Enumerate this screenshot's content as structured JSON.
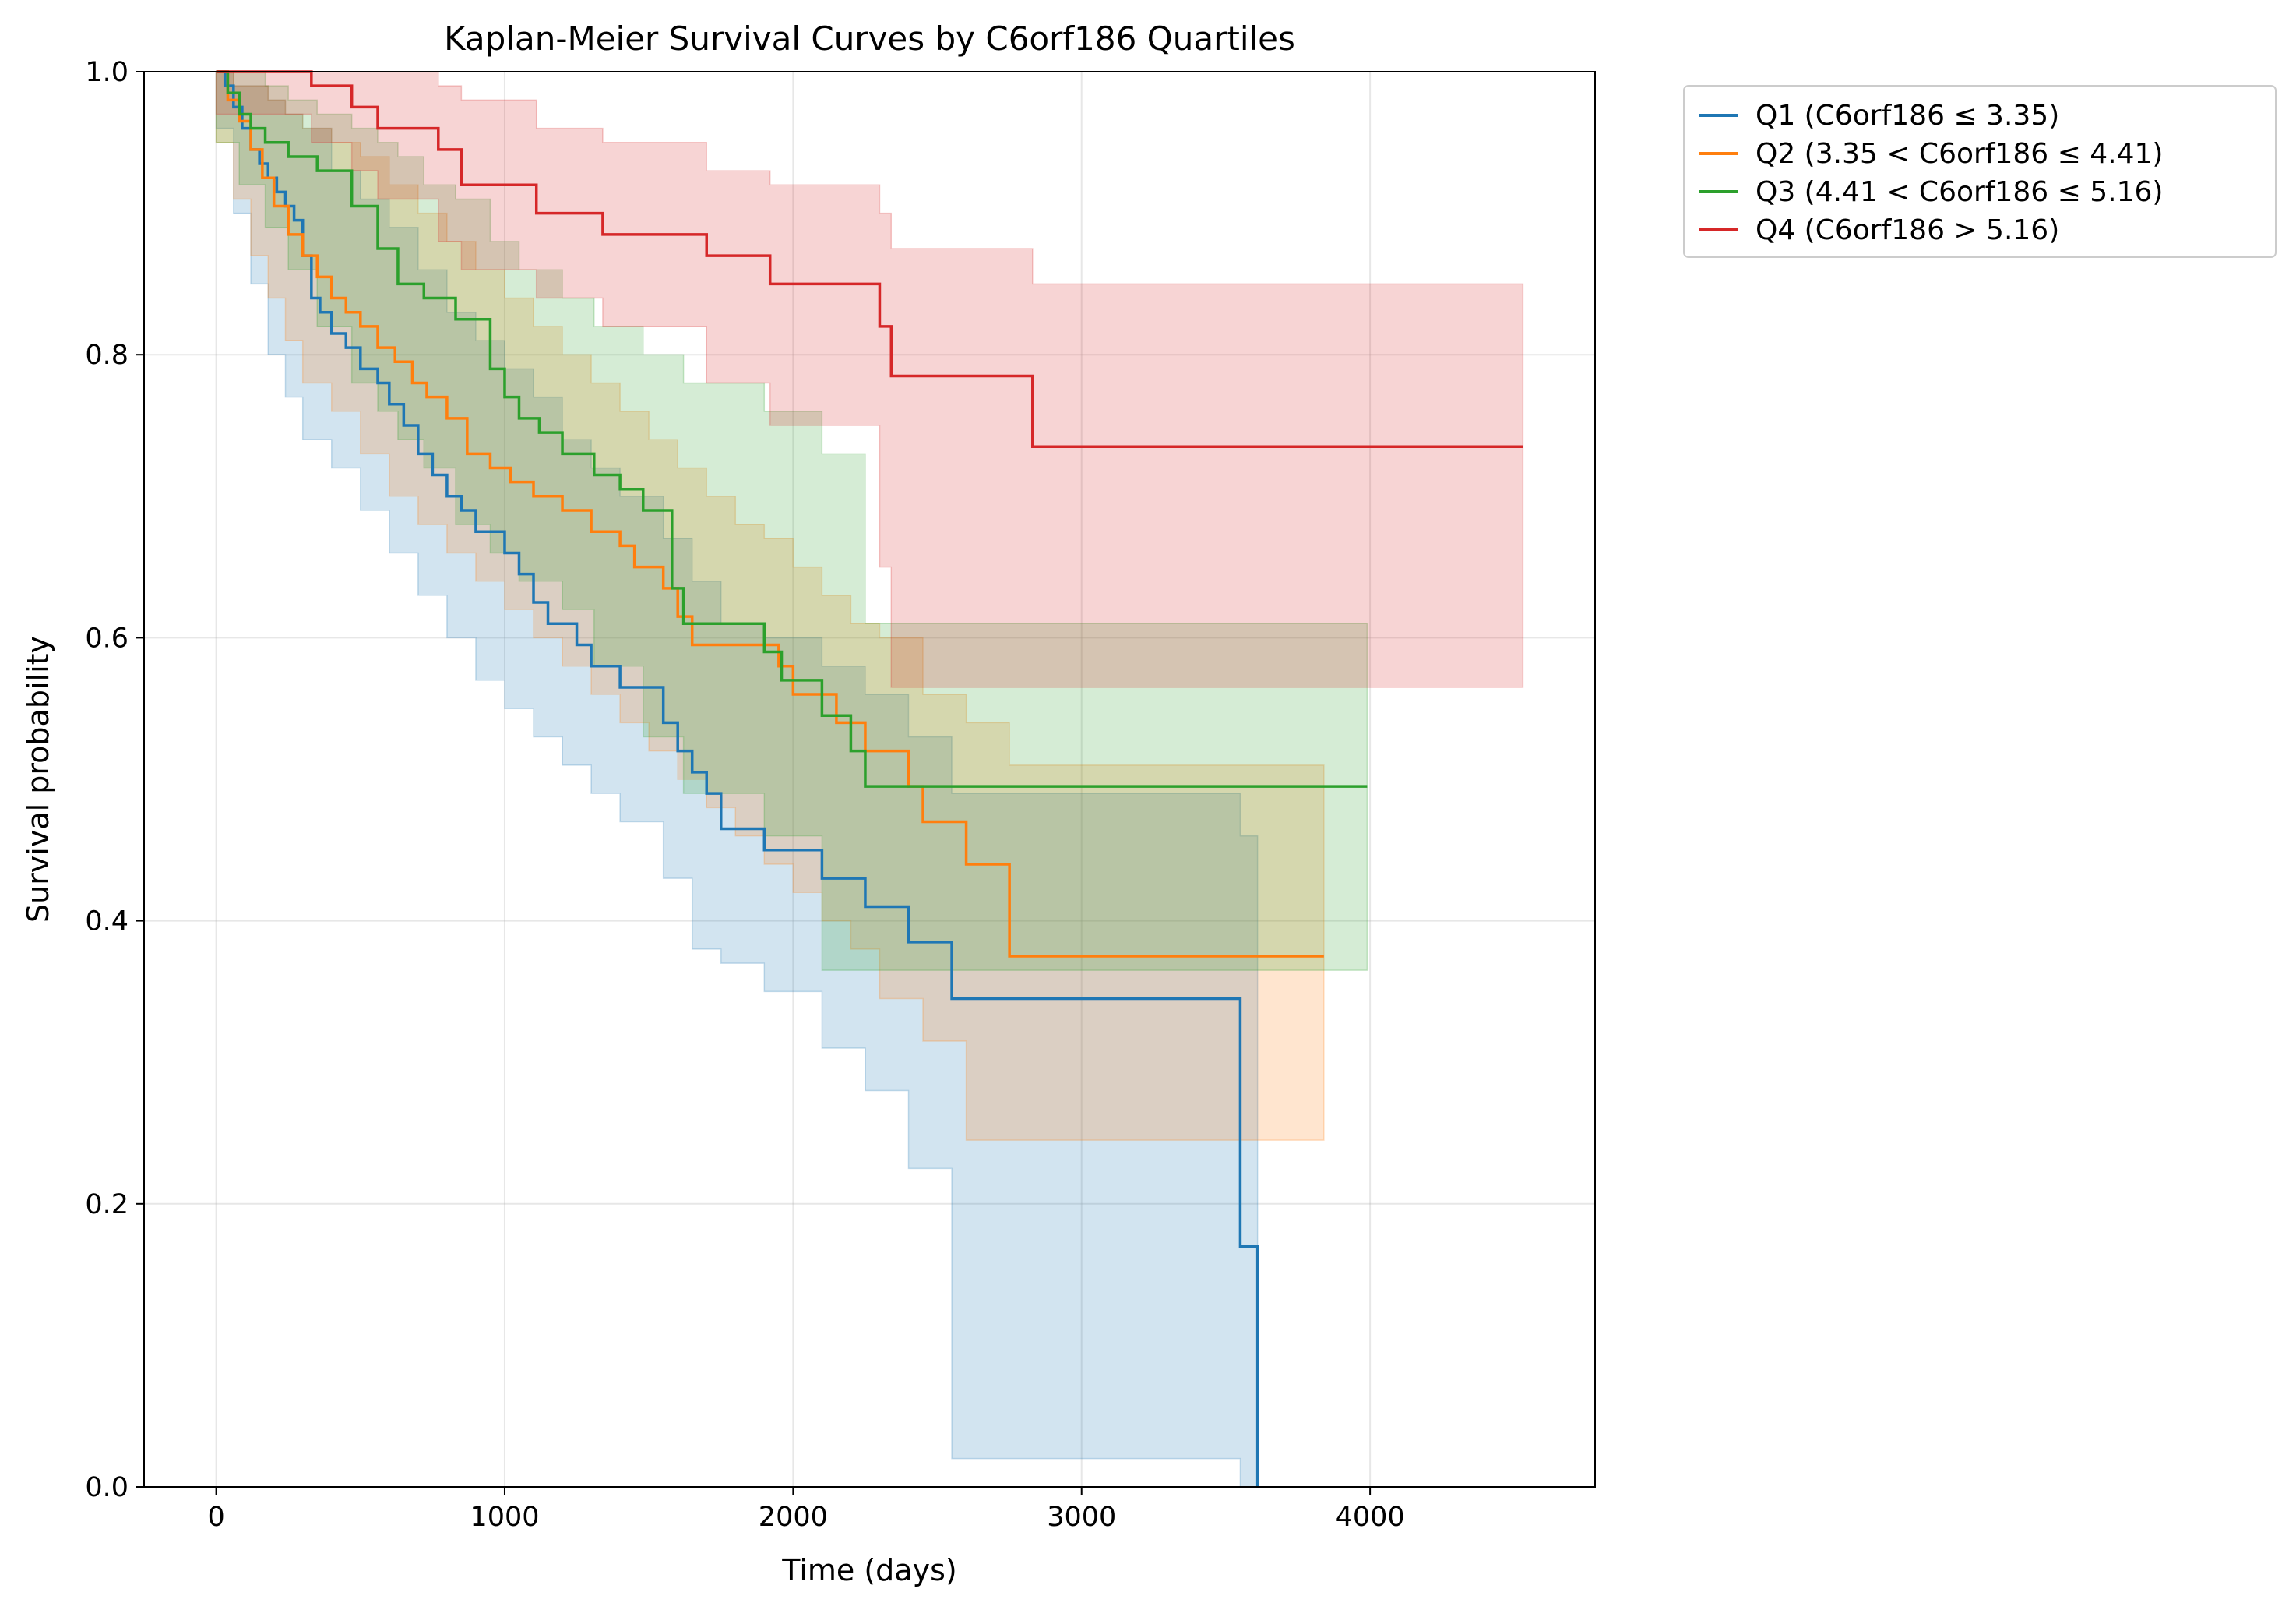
{
  "chart_data": {
    "type": "line",
    "title": "Kaplan-Meier Survival Curves by C6orf186 Quartiles",
    "xlabel": "Time (days)",
    "ylabel": "Survival probability",
    "xlim": [
      -250,
      4780
    ],
    "ylim": [
      0,
      1
    ],
    "xticks": [
      0,
      1000,
      2000,
      3000,
      4000
    ],
    "yticks": [
      0.0,
      0.2,
      0.4,
      0.6,
      0.8,
      1.0
    ],
    "xtick_labels": [
      "0",
      "1000",
      "2000",
      "3000",
      "4000"
    ],
    "ytick_labels": [
      "0.0",
      "0.2",
      "0.4",
      "0.6",
      "0.8",
      "1.0"
    ],
    "grid": true,
    "legend_position": "outside upper-right",
    "step": "post",
    "series": [
      {
        "name": "Q1 (C6orf186 ≤ 3.35)",
        "color": "#1f77b4",
        "x": [
          0,
          30,
          60,
          90,
          120,
          150,
          180,
          210,
          240,
          270,
          300,
          330,
          360,
          400,
          450,
          500,
          560,
          600,
          650,
          700,
          750,
          800,
          850,
          900,
          1000,
          1050,
          1100,
          1150,
          1250,
          1300,
          1400,
          1550,
          1600,
          1650,
          1700,
          1750,
          1900,
          2100,
          2250,
          2400,
          2550,
          3550,
          3610
        ],
        "y": [
          1.0,
          0.99,
          0.975,
          0.96,
          0.945,
          0.935,
          0.925,
          0.915,
          0.905,
          0.895,
          0.87,
          0.84,
          0.83,
          0.815,
          0.805,
          0.79,
          0.78,
          0.765,
          0.75,
          0.73,
          0.715,
          0.7,
          0.69,
          0.675,
          0.66,
          0.645,
          0.625,
          0.61,
          0.595,
          0.58,
          0.565,
          0.54,
          0.52,
          0.505,
          0.49,
          0.465,
          0.45,
          0.43,
          0.41,
          0.385,
          0.345,
          0.17,
          0.0
        ],
        "ci_x": [
          0,
          60,
          120,
          180,
          240,
          300,
          400,
          500,
          600,
          700,
          800,
          900,
          1000,
          1100,
          1200,
          1300,
          1400,
          1550,
          1650,
          1750,
          1900,
          2100,
          2250,
          2400,
          2550,
          3550,
          3610
        ],
        "ci_upper": [
          1.0,
          0.99,
          0.99,
          0.98,
          0.97,
          0.96,
          0.93,
          0.91,
          0.89,
          0.86,
          0.83,
          0.81,
          0.79,
          0.77,
          0.74,
          0.72,
          0.7,
          0.67,
          0.64,
          0.61,
          0.6,
          0.58,
          0.56,
          0.53,
          0.49,
          0.46,
          0.0
        ],
        "ci_lower": [
          1.0,
          0.96,
          0.9,
          0.85,
          0.8,
          0.77,
          0.74,
          0.72,
          0.69,
          0.66,
          0.63,
          0.6,
          0.57,
          0.55,
          0.53,
          0.51,
          0.49,
          0.47,
          0.43,
          0.38,
          0.37,
          0.35,
          0.31,
          0.28,
          0.225,
          0.02,
          0.0
        ]
      },
      {
        "name": "Q2 (3.35 < C6orf186 ≤ 4.41)",
        "color": "#ff7f0e",
        "x": [
          0,
          40,
          80,
          120,
          160,
          200,
          250,
          300,
          350,
          400,
          450,
          500,
          560,
          620,
          680,
          730,
          800,
          870,
          950,
          1020,
          1100,
          1200,
          1300,
          1400,
          1450,
          1550,
          1600,
          1650,
          1950,
          2000,
          2150,
          2250,
          2400,
          2450,
          2600,
          2750
        ],
        "y": [
          1.0,
          0.98,
          0.965,
          0.945,
          0.925,
          0.905,
          0.885,
          0.87,
          0.855,
          0.84,
          0.83,
          0.82,
          0.805,
          0.795,
          0.78,
          0.77,
          0.755,
          0.73,
          0.72,
          0.71,
          0.7,
          0.69,
          0.675,
          0.665,
          0.65,
          0.635,
          0.615,
          0.595,
          0.58,
          0.56,
          0.54,
          0.52,
          0.495,
          0.47,
          0.44,
          0.375
        ],
        "ci_x": [
          0,
          60,
          120,
          180,
          240,
          300,
          400,
          500,
          600,
          700,
          800,
          900,
          1000,
          1100,
          1200,
          1300,
          1400,
          1500,
          1600,
          1700,
          1800,
          1900,
          2000,
          2100,
          2200,
          2300,
          2450,
          2600,
          2750,
          3840
        ],
        "ci_upper": [
          1.0,
          0.99,
          0.99,
          0.98,
          0.97,
          0.96,
          0.95,
          0.94,
          0.92,
          0.9,
          0.88,
          0.86,
          0.84,
          0.82,
          0.8,
          0.78,
          0.76,
          0.74,
          0.72,
          0.7,
          0.68,
          0.67,
          0.65,
          0.63,
          0.61,
          0.6,
          0.56,
          0.54,
          0.51,
          0.51
        ],
        "ci_lower": [
          1.0,
          0.95,
          0.91,
          0.87,
          0.84,
          0.81,
          0.78,
          0.76,
          0.73,
          0.7,
          0.68,
          0.66,
          0.64,
          0.62,
          0.6,
          0.58,
          0.56,
          0.54,
          0.52,
          0.5,
          0.48,
          0.46,
          0.44,
          0.42,
          0.4,
          0.38,
          0.345,
          0.315,
          0.245,
          0.245
        ]
      },
      {
        "name": "Q3 (4.41 < C6orf186 ≤ 5.16)",
        "color": "#2ca02c",
        "x": [
          0,
          40,
          80,
          120,
          170,
          250,
          350,
          470,
          560,
          630,
          720,
          830,
          950,
          1000,
          1050,
          1120,
          1200,
          1310,
          1400,
          1480,
          1580,
          1620,
          1900,
          1960,
          2100,
          2200,
          2250
        ],
        "y": [
          1.0,
          0.985,
          0.97,
          0.96,
          0.95,
          0.94,
          0.93,
          0.905,
          0.875,
          0.85,
          0.84,
          0.825,
          0.79,
          0.77,
          0.755,
          0.745,
          0.73,
          0.715,
          0.705,
          0.69,
          0.635,
          0.61,
          0.59,
          0.57,
          0.545,
          0.52,
          0.495
        ],
        "ci_x": [
          0,
          80,
          170,
          250,
          350,
          470,
          560,
          630,
          720,
          830,
          950,
          1050,
          1200,
          1310,
          1480,
          1620,
          1900,
          2100,
          2250,
          3990
        ],
        "ci_upper": [
          1.0,
          1.0,
          0.99,
          0.98,
          0.97,
          0.96,
          0.95,
          0.94,
          0.92,
          0.91,
          0.88,
          0.86,
          0.84,
          0.82,
          0.8,
          0.78,
          0.76,
          0.73,
          0.61,
          0.61
        ],
        "ci_lower": [
          1.0,
          0.95,
          0.92,
          0.89,
          0.86,
          0.82,
          0.78,
          0.76,
          0.74,
          0.72,
          0.68,
          0.66,
          0.64,
          0.62,
          0.58,
          0.53,
          0.49,
          0.46,
          0.365,
          0.365
        ]
      },
      {
        "name": "Q4 (C6orf186 > 5.16)",
        "color": "#d62728",
        "x": [
          0,
          330,
          470,
          560,
          770,
          850,
          1110,
          1340,
          1700,
          1920,
          2300,
          2340,
          2830
        ],
        "y": [
          1.0,
          0.99,
          0.975,
          0.96,
          0.945,
          0.92,
          0.9,
          0.885,
          0.87,
          0.85,
          0.82,
          0.785,
          0.735
        ],
        "ci_x": [
          0,
          330,
          470,
          560,
          770,
          850,
          1110,
          1340,
          1700,
          1920,
          2300,
          2340,
          2830,
          4530
        ],
        "ci_upper": [
          1.0,
          1.0,
          1.0,
          1.0,
          0.99,
          0.98,
          0.96,
          0.95,
          0.93,
          0.92,
          0.9,
          0.875,
          0.85,
          0.85
        ],
        "ci_lower": [
          1.0,
          0.97,
          0.95,
          0.93,
          0.91,
          0.88,
          0.86,
          0.84,
          0.82,
          0.78,
          0.75,
          0.65,
          0.565,
          0.565
        ]
      }
    ]
  }
}
